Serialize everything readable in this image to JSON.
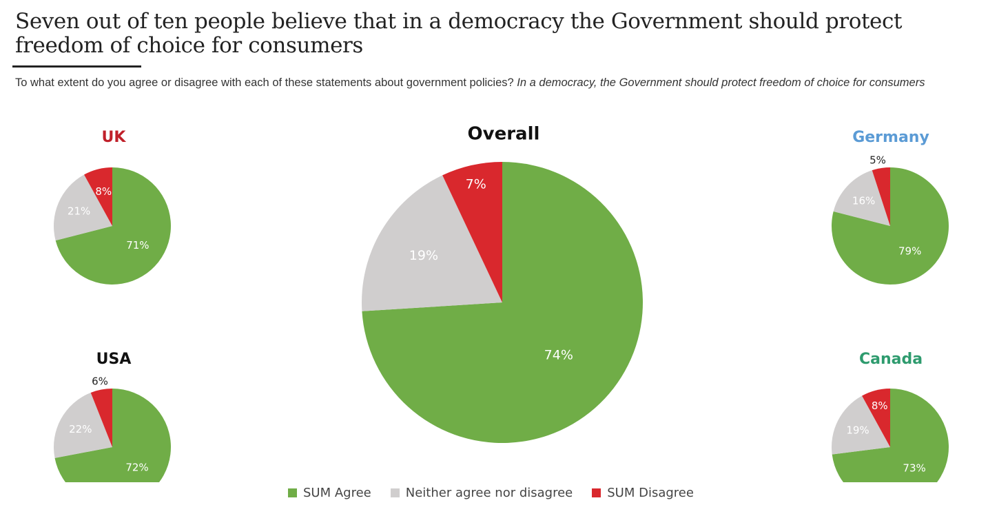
{
  "title": "Seven out of ten people believe that in a democracy the Government should protect freedom of choice for consumers",
  "subtitle": {
    "question": "To what extent do you agree or disagree with each of these statements about government policies?",
    "statement": "In a democracy, the Government should protect freedom of choice for consumers"
  },
  "colors": {
    "agree": "#70ad47",
    "neither": "#d0cece",
    "disagree": "#d9282d"
  },
  "legend": [
    {
      "label": "SUM Agree",
      "color": "#70ad47"
    },
    {
      "label": "Neither agree nor disagree",
      "color": "#d0cece"
    },
    {
      "label": "SUM Disagree",
      "color": "#d9282d"
    }
  ],
  "chart_data": [
    {
      "type": "pie",
      "title": "UK",
      "title_color": "#c0202a",
      "categories": [
        "SUM Agree",
        "Neither agree nor disagree",
        "SUM Disagree"
      ],
      "values": [
        71,
        21,
        8
      ],
      "labels": [
        "71%",
        "21%",
        "8%"
      ]
    },
    {
      "type": "pie",
      "title": "USA",
      "title_color": "#111111",
      "categories": [
        "SUM Agree",
        "Neither agree nor disagree",
        "SUM Disagree"
      ],
      "values": [
        72,
        22,
        6
      ],
      "labels": [
        "72%",
        "22%",
        "6%"
      ]
    },
    {
      "type": "pie",
      "title": "Overall",
      "title_color": "#111111",
      "categories": [
        "SUM Agree",
        "Neither agree nor disagree",
        "SUM Disagree"
      ],
      "values": [
        74,
        19,
        7
      ],
      "labels": [
        "74%",
        "19%",
        "7%"
      ]
    },
    {
      "type": "pie",
      "title": "Germany",
      "title_color": "#5b9bd5",
      "categories": [
        "SUM Agree",
        "Neither agree nor disagree",
        "SUM Disagree"
      ],
      "values": [
        79,
        16,
        5
      ],
      "labels": [
        "79%",
        "16%",
        "5%"
      ]
    },
    {
      "type": "pie",
      "title": "Canada",
      "title_color": "#2e9b6e",
      "categories": [
        "SUM Agree",
        "Neither agree nor disagree",
        "SUM Disagree"
      ],
      "values": [
        73,
        19,
        8
      ],
      "labels": [
        "73%",
        "19%",
        "8%"
      ]
    }
  ]
}
